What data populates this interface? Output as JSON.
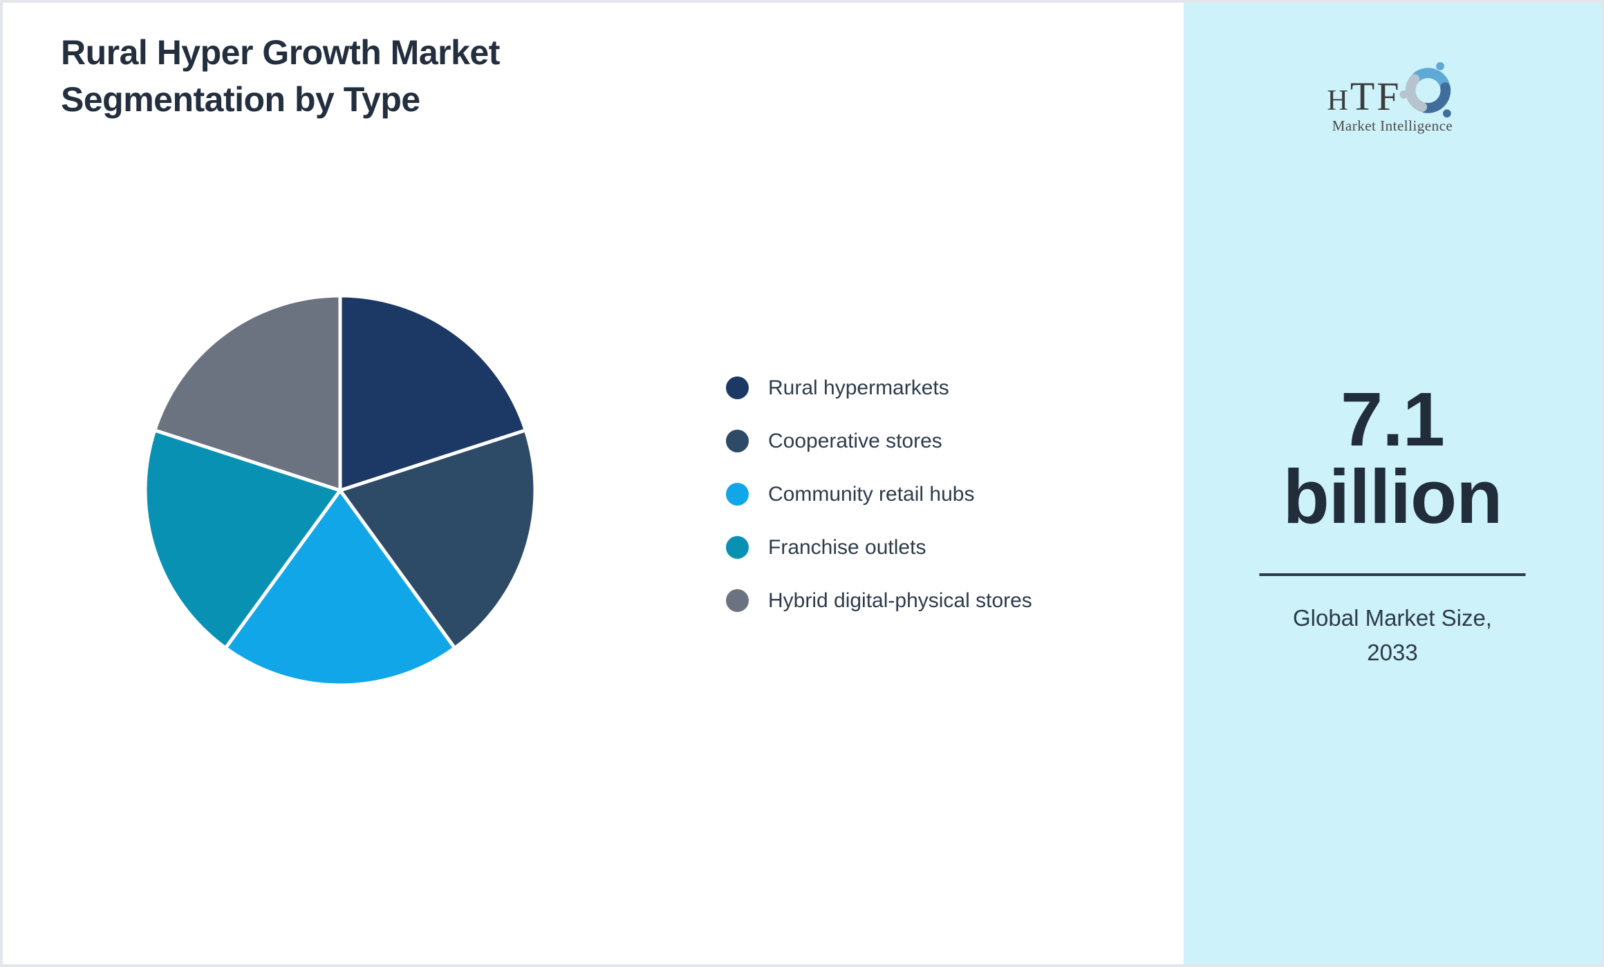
{
  "page": {
    "background": "#ffffff",
    "frame_border_color": "#e3e6ea"
  },
  "header": {
    "title_line1": "Rural Hyper Growth Market",
    "title_line2": "Segmentation by Type",
    "title_color": "#232f3e"
  },
  "chart_data": {
    "type": "pie",
    "title": "Rural Hyper Growth Market Segmentation by Type",
    "labels": [
      "Rural hypermarkets",
      "Cooperative stores",
      "Community retail hubs",
      "Franchise outlets",
      "Hybrid digital-physical stores"
    ],
    "values": [
      20,
      20,
      20,
      20,
      20
    ],
    "unit": "percent-share-approx",
    "colors": [
      "#1c3864",
      "#2d4a66",
      "#11a6e8",
      "#0991b4",
      "#6c7380"
    ],
    "start_angle_deg": -90,
    "direction": "clockwise",
    "slice_border_color": "#ffffff",
    "legend_position": "right",
    "legend_text_color": "#2d3b4a"
  },
  "sidebar": {
    "background": "#cdf2f9",
    "logo": {
      "text": "HTF",
      "subtext": "Market Intelligence",
      "icon": "htf-swirl-figures-icon",
      "icon_colors": [
        "#5ea9d6",
        "#3f6e9d",
        "#b7c3ce"
      ],
      "text_color": "#3c3c3c",
      "subtext_color": "#4a4a4a"
    },
    "market_size": {
      "value_line1": "7.1",
      "value_line2": "billion",
      "caption_line1": "Global Market Size,",
      "caption_line2": "2033",
      "value_color": "#222d3c",
      "caption_color": "#2c3a4a"
    },
    "divider_color": "#2c3a4a"
  }
}
